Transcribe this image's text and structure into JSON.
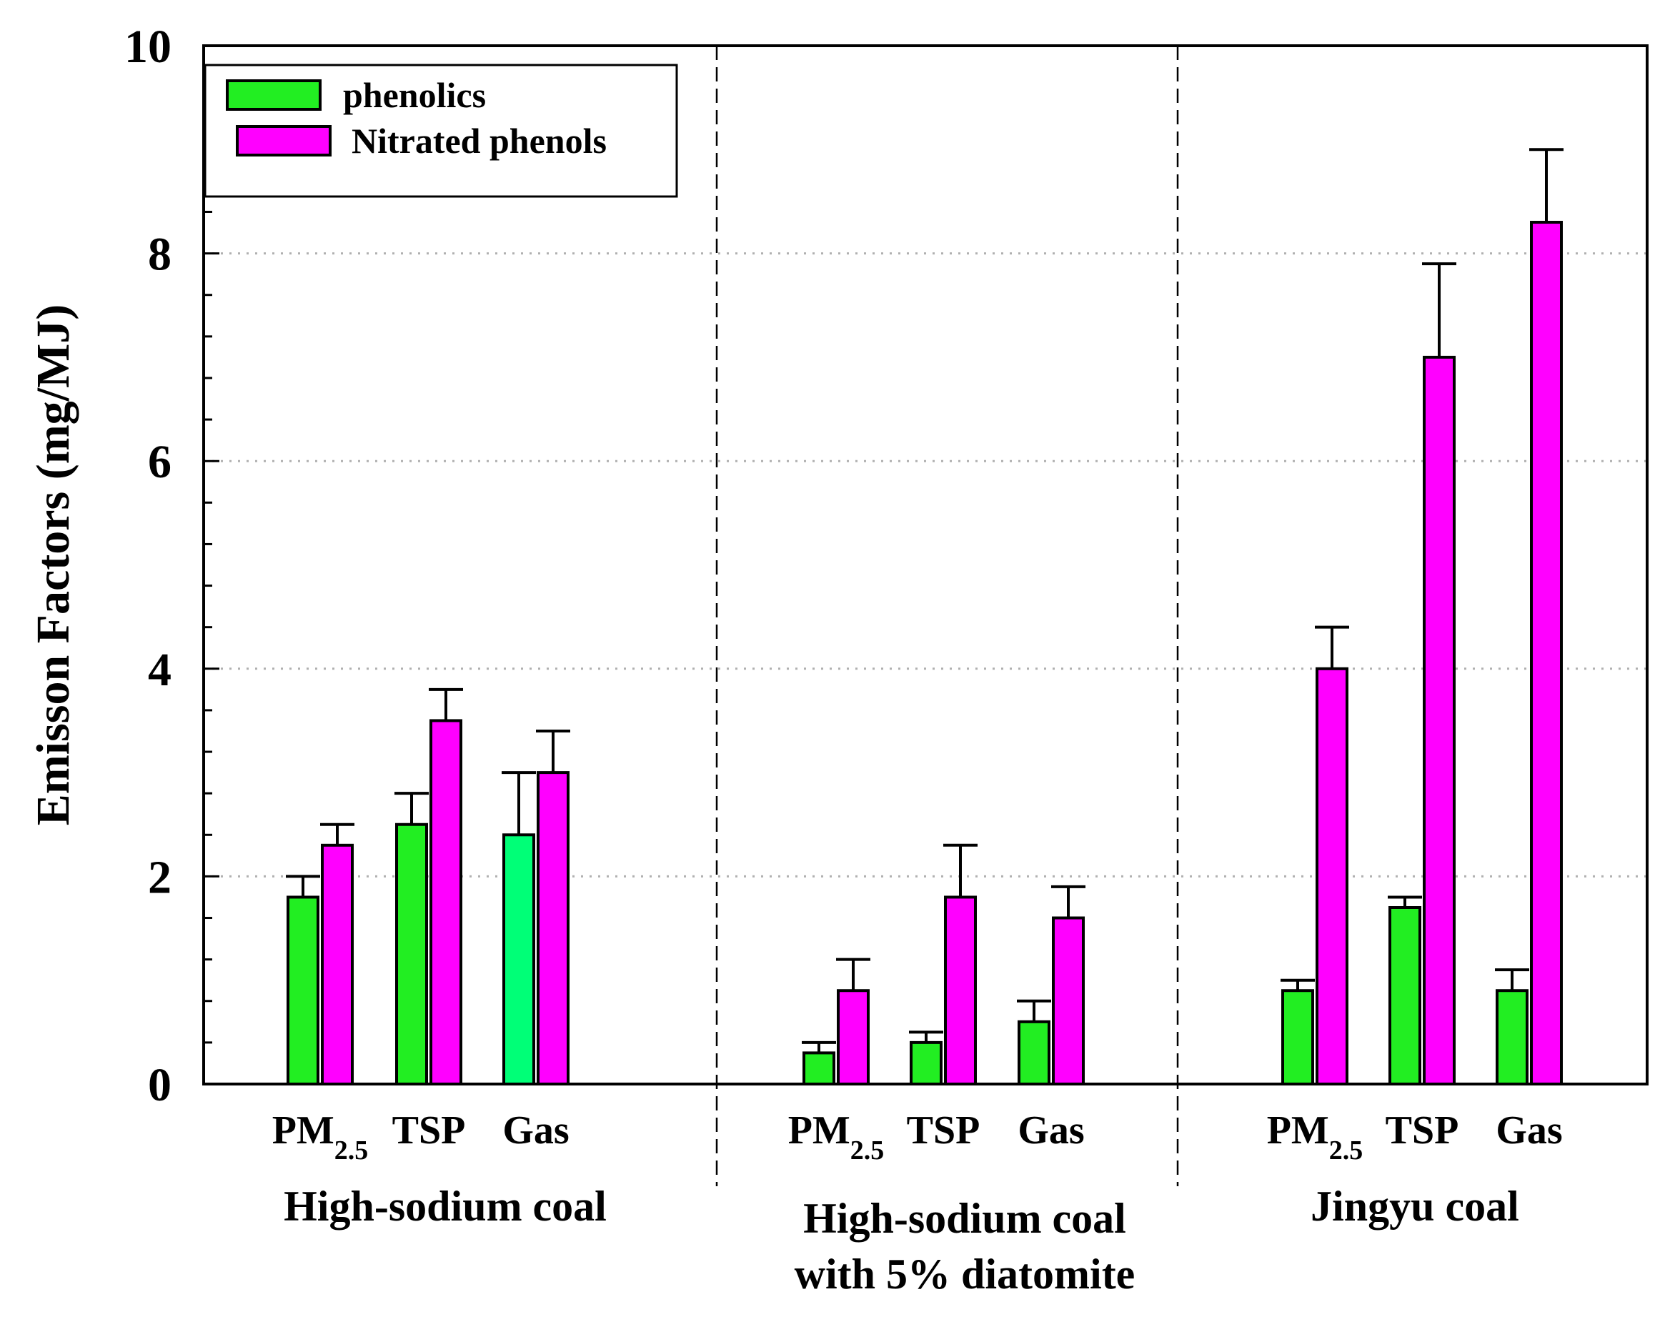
{
  "chart_data": {
    "type": "bar",
    "ylabel": "Emisson Factors (mg/MJ)",
    "ylim": [
      0,
      10
    ],
    "yticks": [
      0,
      2,
      4,
      6,
      8,
      10
    ],
    "grid": "horizontal dotted",
    "legend_position": "top-left",
    "series_order": [
      "phenolics",
      "Nitrated phenols"
    ],
    "series": [
      {
        "name": "phenolics",
        "color": "#22ee22"
      },
      {
        "name": "Nitrated phenols",
        "color": "#ff00ff"
      }
    ],
    "groups": [
      {
        "label_lines": [
          "High-sodium coal"
        ],
        "categories": [
          {
            "label": "PM",
            "sub": "2.5",
            "phenolics": 1.8,
            "phenolics_err": 0.2,
            "nitrated": 2.3,
            "nitrated_err": 0.2
          },
          {
            "label": "TSP",
            "sub": "",
            "phenolics": 2.5,
            "phenolics_err": 0.3,
            "nitrated": 3.5,
            "nitrated_err": 0.3
          },
          {
            "label": "Gas",
            "sub": "",
            "phenolics": 2.4,
            "phenolics_err": 0.6,
            "nitrated": 3.0,
            "nitrated_err": 0.4,
            "phenolics_color": "#00ff77"
          }
        ]
      },
      {
        "label_lines": [
          "High-sodium coal",
          "with 5% diatomite"
        ],
        "categories": [
          {
            "label": "PM",
            "sub": "2.5",
            "phenolics": 0.3,
            "phenolics_err": 0.1,
            "nitrated": 0.9,
            "nitrated_err": 0.3
          },
          {
            "label": "TSP",
            "sub": "",
            "phenolics": 0.4,
            "phenolics_err": 0.1,
            "nitrated": 1.8,
            "nitrated_err": 0.5
          },
          {
            "label": "Gas",
            "sub": "",
            "phenolics": 0.6,
            "phenolics_err": 0.2,
            "nitrated": 1.6,
            "nitrated_err": 0.3
          }
        ]
      },
      {
        "label_lines": [
          "Jingyu coal"
        ],
        "categories": [
          {
            "label": "PM",
            "sub": "2.5",
            "phenolics": 0.9,
            "phenolics_err": 0.1,
            "nitrated": 4.0,
            "nitrated_err": 0.4
          },
          {
            "label": "TSP",
            "sub": "",
            "phenolics": 1.7,
            "phenolics_err": 0.1,
            "nitrated": 7.0,
            "nitrated_err": 0.9
          },
          {
            "label": "Gas",
            "sub": "",
            "phenolics": 0.9,
            "phenolics_err": 0.2,
            "nitrated": 8.3,
            "nitrated_err": 0.7
          }
        ]
      }
    ]
  }
}
